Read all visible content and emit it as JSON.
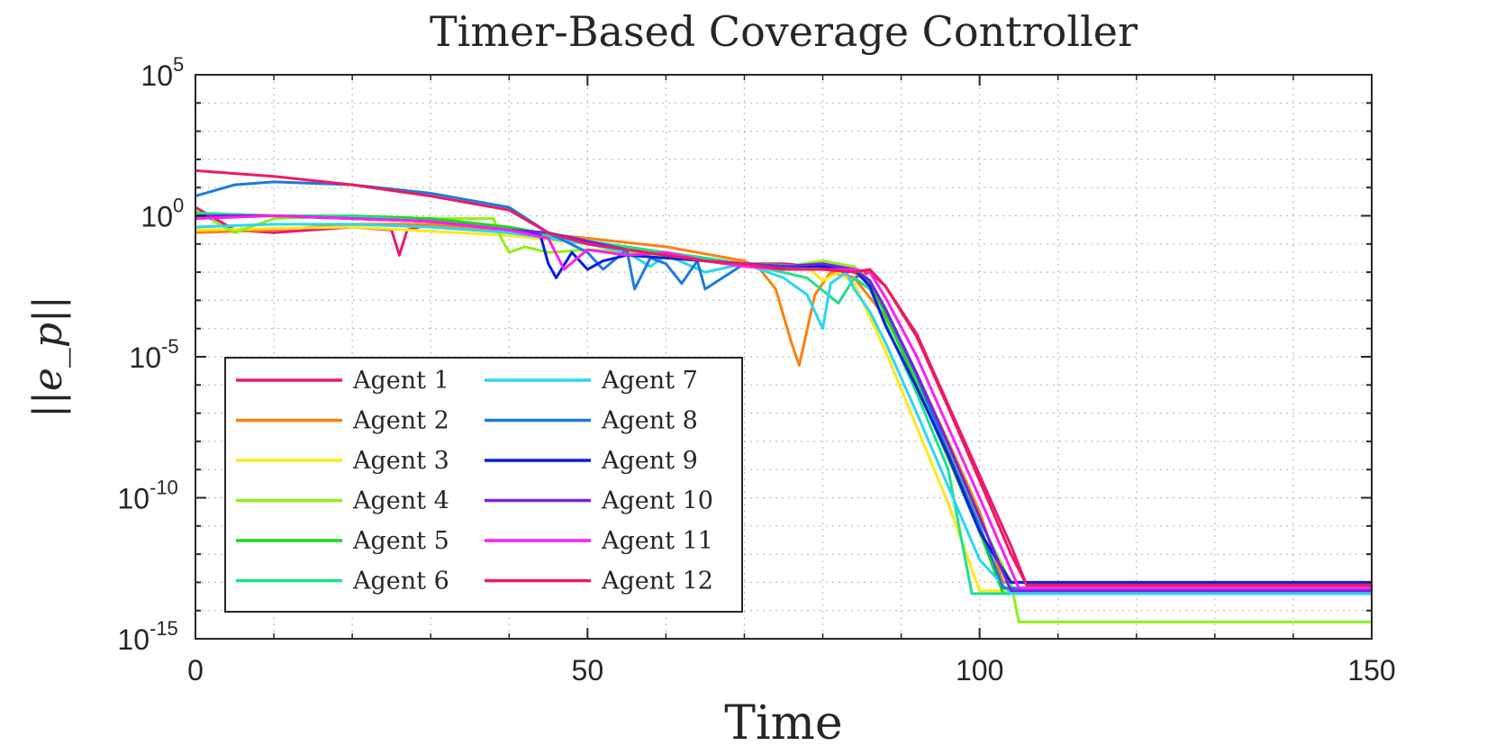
{
  "chart_data": {
    "type": "line",
    "title": "Timer-Based Coverage Controller",
    "xlabel": "Time",
    "ylabel": "||e_p||",
    "xlim": [
      0,
      150
    ],
    "ylim_log10": [
      -15,
      5
    ],
    "yscale": "log",
    "grid": true,
    "legend_location": "bottom-left",
    "x_ticks": [
      "0",
      "50",
      "100",
      "150"
    ],
    "y_ticks": [
      {
        "base": "10",
        "exp": "5"
      },
      {
        "base": "10",
        "exp": "0"
      },
      {
        "base": "10",
        "exp": "-5"
      },
      {
        "base": "10",
        "exp": "-10"
      },
      {
        "base": "10",
        "exp": "-15"
      }
    ],
    "series": [
      {
        "name": "Agent 1",
        "color": "#e8177a",
        "x": [
          0,
          5,
          10,
          20,
          25,
          26,
          27,
          30,
          40,
          50,
          55,
          60,
          65,
          70,
          75,
          80,
          84,
          86,
          88,
          92,
          96,
          100,
          104,
          106,
          150
        ],
        "log10_y": [
          0.3,
          -0.5,
          -0.6,
          -0.4,
          -0.5,
          -1.4,
          -0.5,
          -0.3,
          -0.5,
          -1.0,
          -1.2,
          -1.3,
          -1.6,
          -1.7,
          -1.7,
          -1.8,
          -2.2,
          -2.0,
          -2.5,
          -4.2,
          -6.7,
          -9.2,
          -11.7,
          -13.1,
          -13.1
        ]
      },
      {
        "name": "Agent 2",
        "color": "#ff7f0e",
        "x": [
          0,
          10,
          20,
          30,
          40,
          50,
          60,
          70,
          72,
          74,
          76,
          77,
          79,
          81,
          84,
          88,
          92,
          96,
          100,
          103,
          150
        ],
        "log10_y": [
          -0.6,
          -0.5,
          -0.3,
          -0.3,
          -0.5,
          -0.8,
          -1.1,
          -1.6,
          -1.9,
          -2.6,
          -4.5,
          -5.3,
          -2.8,
          -2.0,
          -2.2,
          -3.6,
          -5.6,
          -8.0,
          -10.5,
          -13.0,
          -13.0
        ]
      },
      {
        "name": "Agent 3",
        "color": "#ffe818",
        "x": [
          0,
          20,
          40,
          50,
          60,
          70,
          78,
          80,
          82,
          84,
          88,
          92,
          96,
          100,
          150
        ],
        "log10_y": [
          -0.5,
          -0.4,
          -0.7,
          -1.0,
          -1.4,
          -1.7,
          -1.8,
          -2.3,
          -2.0,
          -2.4,
          -4.8,
          -7.5,
          -10.2,
          -13.3,
          -13.3
        ]
      },
      {
        "name": "Agent 4",
        "color": "#8ef01b",
        "x": [
          0,
          3,
          5,
          10,
          20,
          30,
          38,
          39,
          40,
          42,
          45,
          50,
          55,
          60,
          65,
          70,
          75,
          80,
          84,
          86,
          88,
          92,
          96,
          100,
          104,
          105,
          150
        ],
        "log10_y": [
          0.2,
          -0.3,
          -0.6,
          -0.1,
          0.0,
          -0.1,
          -0.1,
          -0.8,
          -1.3,
          -1.1,
          -1.3,
          -1.2,
          -1.3,
          -1.4,
          -1.6,
          -1.7,
          -1.8,
          -1.6,
          -1.8,
          -2.3,
          -3.3,
          -5.8,
          -8.3,
          -10.8,
          -13.0,
          -14.4,
          -14.4
        ]
      },
      {
        "name": "Agent 5",
        "color": "#1ad81a",
        "x": [
          0,
          10,
          20,
          30,
          40,
          50,
          60,
          70,
          80,
          84,
          86,
          88,
          92,
          96,
          100,
          103,
          150
        ],
        "log10_y": [
          0.1,
          0.0,
          0.0,
          -0.1,
          -0.4,
          -0.9,
          -1.3,
          -1.7,
          -1.8,
          -2.0,
          -2.4,
          -3.5,
          -6.0,
          -8.6,
          -11.2,
          -13.4,
          -13.4
        ]
      },
      {
        "name": "Agent 6",
        "color": "#1fe08c",
        "x": [
          0,
          10,
          20,
          30,
          40,
          50,
          60,
          70,
          78,
          82,
          84,
          86,
          88,
          92,
          96,
          99,
          150
        ],
        "log10_y": [
          0.1,
          0.0,
          0.0,
          -0.2,
          -0.5,
          -0.9,
          -1.3,
          -1.7,
          -2.2,
          -3.1,
          -2.2,
          -2.6,
          -3.8,
          -6.3,
          -9.0,
          -13.4,
          -13.4
        ]
      },
      {
        "name": "Agent 7",
        "color": "#29d7f0",
        "x": [
          0,
          10,
          20,
          30,
          40,
          50,
          55,
          58,
          60,
          65,
          70,
          75,
          78,
          80,
          81,
          83,
          84,
          86,
          88,
          92,
          96,
          100,
          104,
          150
        ],
        "log10_y": [
          -0.4,
          -0.3,
          -0.3,
          -0.4,
          -0.6,
          -1.0,
          -1.3,
          -1.8,
          -1.4,
          -2.0,
          -1.7,
          -2.2,
          -2.8,
          -4.0,
          -2.4,
          -2.0,
          -2.6,
          -3.4,
          -4.5,
          -7.0,
          -9.6,
          -12.2,
          -13.4,
          -13.4
        ]
      },
      {
        "name": "Agent 8",
        "color": "#1a7be0",
        "x": [
          0,
          5,
          10,
          20,
          30,
          40,
          45,
          50,
          52,
          55,
          56,
          58,
          60,
          62,
          64,
          65,
          70,
          75,
          80,
          84,
          86,
          88,
          92,
          96,
          100,
          103,
          150
        ],
        "log10_y": [
          0.7,
          1.1,
          1.2,
          1.1,
          0.8,
          0.3,
          -0.6,
          -1.3,
          -1.9,
          -1.2,
          -2.6,
          -1.5,
          -1.7,
          -2.4,
          -1.6,
          -2.6,
          -1.7,
          -1.8,
          -1.7,
          -1.9,
          -2.3,
          -3.3,
          -5.7,
          -8.4,
          -11.0,
          -13.2,
          -13.2
        ]
      },
      {
        "name": "Agent 9",
        "color": "#0a1fe0",
        "x": [
          0,
          10,
          20,
          30,
          40,
          44,
          45,
          46,
          48,
          50,
          52,
          55,
          60,
          65,
          70,
          75,
          80,
          84,
          86,
          88,
          92,
          96,
          100,
          104,
          150
        ],
        "log10_y": [
          0.0,
          0.0,
          -0.1,
          -0.2,
          -0.5,
          -0.7,
          -1.7,
          -2.2,
          -1.3,
          -1.9,
          -1.6,
          -1.4,
          -1.5,
          -1.6,
          -1.7,
          -1.8,
          -1.8,
          -1.9,
          -2.5,
          -3.9,
          -6.1,
          -8.5,
          -11.2,
          -13.0,
          -13.0
        ]
      },
      {
        "name": "Agent 10",
        "color": "#7422e6",
        "x": [
          0,
          10,
          20,
          30,
          40,
          45,
          50,
          55,
          60,
          65,
          70,
          75,
          80,
          84,
          86,
          88,
          92,
          96,
          100,
          104,
          150
        ],
        "log10_y": [
          0.0,
          0.0,
          -0.1,
          -0.2,
          -0.5,
          -0.6,
          -0.9,
          -1.2,
          -1.4,
          -1.6,
          -1.7,
          -1.8,
          -1.7,
          -1.9,
          -2.3,
          -3.3,
          -5.6,
          -8.1,
          -10.7,
          -13.3,
          -13.3
        ]
      },
      {
        "name": "Agent 11",
        "color": "#ff1ef0",
        "x": [
          0,
          10,
          20,
          30,
          40,
          45,
          47,
          50,
          55,
          60,
          65,
          70,
          75,
          80,
          84,
          86,
          88,
          92,
          96,
          100,
          105,
          150
        ],
        "log10_y": [
          -0.1,
          0.0,
          -0.1,
          -0.2,
          -0.5,
          -0.8,
          -1.9,
          -1.2,
          -1.4,
          -1.3,
          -1.6,
          -1.8,
          -1.9,
          -1.9,
          -1.9,
          -2.0,
          -2.9,
          -5.0,
          -7.5,
          -10.0,
          -13.2,
          -13.2
        ]
      },
      {
        "name": "Agent 12",
        "color": "#ee1b5e",
        "x": [
          0,
          10,
          20,
          30,
          40,
          45,
          50,
          55,
          60,
          65,
          70,
          75,
          80,
          84,
          86,
          88,
          92,
          96,
          100,
          104,
          106,
          150
        ],
        "log10_y": [
          1.6,
          1.4,
          1.1,
          0.7,
          0.2,
          -0.6,
          -1.0,
          -1.2,
          -1.4,
          -1.6,
          -1.7,
          -1.9,
          -1.9,
          -2.0,
          -1.9,
          -2.5,
          -4.3,
          -6.8,
          -9.4,
          -12.0,
          -13.1,
          -13.1
        ]
      }
    ]
  }
}
